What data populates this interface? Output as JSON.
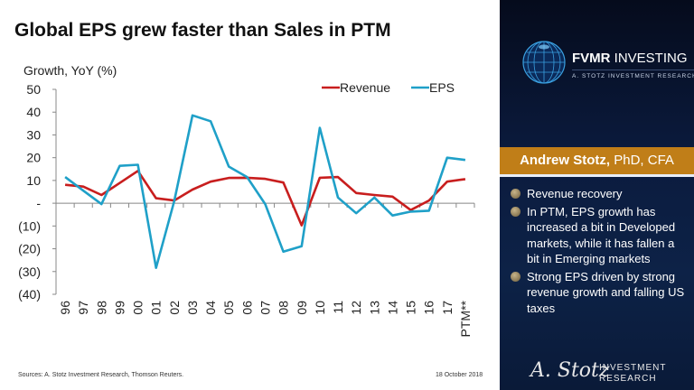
{
  "title": "Global EPS grew faster than Sales in PTM",
  "footer": {
    "sources": "Sources: A. Stotz Investment Research, Thomson Reuters.",
    "date": "18 October 2018"
  },
  "panel": {
    "brand_bold": "FVMR",
    "brand_rest": " INVESTING",
    "brand_sub": "A. STOTZ INVESTMENT RESEARCH",
    "author_name": "Andrew Stotz,",
    "author_creds": " PhD, CFA",
    "author_bg": "#c07e18",
    "bullets": [
      "Revenue recovery",
      "In PTM, EPS growth has increased a bit in Developed markets, while it has fallen a bit in Emerging markets",
      "Strong EPS driven by strong revenue growth and falling US taxes"
    ],
    "signature": "A. Stotz",
    "sig_line1": "INVESTMENT",
    "sig_line2": "RESEARCH"
  },
  "chart_data": {
    "type": "line",
    "title": "Global EPS grew faster than Sales in PTM",
    "ylabel": "Growth, YoY (%)",
    "xlabel": "",
    "ylim": [
      -40,
      50
    ],
    "yticks": [
      50,
      40,
      30,
      20,
      10,
      0,
      -10,
      -20,
      -30,
      -40
    ],
    "ytick_labels": [
      "50",
      "40",
      "30",
      "20",
      "10",
      "-",
      "(10)",
      "(20)",
      "(30)",
      "(40)"
    ],
    "grid": false,
    "legend": "top-right",
    "categories": [
      "96",
      "97",
      "98",
      "99",
      "00",
      "01",
      "02",
      "03",
      "04",
      "05",
      "06",
      "07",
      "08",
      "09",
      "10",
      "11",
      "12",
      "13",
      "14",
      "15",
      "16",
      "17",
      "PTM**"
    ],
    "series": [
      {
        "name": "Revenue",
        "color": "#c81e1e",
        "values": [
          8.1,
          7.3,
          3.6,
          8.9,
          14.2,
          2.2,
          1.2,
          6.0,
          9.5,
          11.1,
          11.2,
          10.7,
          9.1,
          -9.7,
          11.2,
          11.5,
          4.5,
          3.6,
          2.9,
          -3.0,
          1.2,
          9.5,
          10.6
        ]
      },
      {
        "name": "EPS",
        "color": "#1fa0c8",
        "values": [
          11.5,
          5.5,
          -0.4,
          16.4,
          16.9,
          -28.4,
          0.9,
          38.6,
          36.0,
          16.1,
          11.5,
          -0.4,
          -21.3,
          -18.9,
          33.1,
          2.5,
          -4.4,
          2.5,
          -5.4,
          -3.7,
          -3.3,
          20.0,
          19.0
        ]
      }
    ]
  }
}
